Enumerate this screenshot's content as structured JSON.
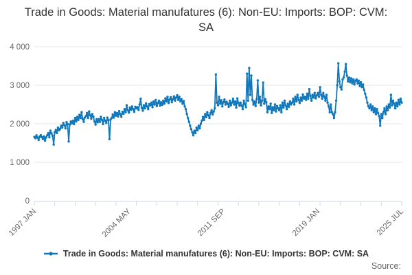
{
  "title": "Trade in Goods: Material manufatures (6): Non-EU: Imports: BOP: CVM: SA",
  "source_label": "Source:",
  "legend": {
    "series_label": "Trade in Goods: Material manufatures (6): Non-EU: Imports: BOP: CVM: SA"
  },
  "colors": {
    "series": "#1177bb",
    "grid": "#e6e6e6",
    "axis": "#ccd6eb",
    "tick_label": "#666666",
    "title": "#333333"
  },
  "chart_data": {
    "type": "line",
    "title": "Trade in Goods: Material manufatures (6): Non-EU: Imports: BOP: CVM: SA",
    "xlabel": "",
    "ylabel": "",
    "ylim": [
      0,
      4000
    ],
    "yticks": [
      0,
      1000,
      2000,
      3000,
      4000
    ],
    "ytick_labels": [
      "0",
      "1 000",
      "2 000",
      "3 000",
      "4 000"
    ],
    "xticks": [
      {
        "label": "1997 JAN",
        "month_index": 0
      },
      {
        "label": "2004 MAY",
        "month_index": 88
      },
      {
        "label": "2011 SEP",
        "month_index": 176
      },
      {
        "label": "2019 JAN",
        "month_index": 264
      },
      {
        "label": "2025 JUL",
        "month_index": 342
      }
    ],
    "x_start": "1997 JAN",
    "x_end": "2025 JUL",
    "frequency": "monthly",
    "grid": true,
    "legend_position": "bottom",
    "series": [
      {
        "name": "Trade in Goods: Material manufatures (6): Non-EU: Imports: BOP: CVM: SA",
        "color": "#1177bb",
        "values": [
          1660,
          1625,
          1700,
          1640,
          1580,
          1665,
          1705,
          1650,
          1600,
          1670,
          1560,
          1645,
          1700,
          1760,
          1650,
          1820,
          1750,
          1690,
          1460,
          1780,
          1840,
          1760,
          1900,
          1830,
          1870,
          1950,
          1900,
          2020,
          1960,
          1880,
          2040,
          1990,
          1540,
          1980,
          2060,
          2010,
          2080,
          1990,
          2150,
          2060,
          2180,
          2100,
          2230,
          2150,
          2300,
          2120,
          2050,
          2160,
          2200,
          2280,
          2150,
          2320,
          2220,
          2130,
          2250,
          2180,
          2060,
          1980,
          2120,
          2040,
          2120,
          2050,
          2180,
          2100,
          1990,
          2150,
          2080,
          2020,
          2160,
          2090,
          1600,
          2110,
          2150,
          2240,
          2160,
          2300,
          2210,
          2280,
          2190,
          2330,
          2250,
          2180,
          2310,
          2260,
          2380,
          2300,
          2480,
          2350,
          2290,
          2420,
          2360,
          2450,
          2380,
          2310,
          2440,
          2400,
          2430,
          2360,
          2500,
          2650,
          2420,
          2340,
          2480,
          2400,
          2530,
          2450,
          2380,
          2510,
          2480,
          2550,
          2430,
          2580,
          2500,
          2620,
          2460,
          2540,
          2600,
          2470,
          2560,
          2490,
          2600,
          2520,
          2660,
          2580,
          2700,
          2540,
          2630,
          2690,
          2560,
          2640,
          2710,
          2600,
          2680,
          2740,
          2620,
          2700,
          2580,
          2640,
          2520,
          2590,
          2450,
          2380,
          2250,
          2150,
          2050,
          1950,
          1860,
          1780,
          1700,
          1820,
          1760,
          1900,
          1830,
          1950,
          1880,
          2000,
          2080,
          2180,
          2100,
          2250,
          2170,
          2300,
          2220,
          2150,
          2280,
          2350,
          2240,
          2320,
          2400,
          3280,
          2550,
          2480,
          2700,
          2520,
          2610,
          2450,
          2560,
          2630,
          2500,
          2570,
          2520,
          2440,
          2600,
          2480,
          2550,
          2650,
          2500,
          2580,
          2420,
          2660,
          2540,
          2470,
          2550,
          2470,
          2380,
          2600,
          2510,
          2430,
          3300,
          2600,
          3450,
          2750,
          3250,
          2620,
          2500,
          2580,
          2460,
          2640,
          3125,
          2550,
          2700,
          2480,
          2600,
          3070,
          2520,
          2640,
          2560,
          2300,
          2450,
          2380,
          2520,
          2280,
          2430,
          2350,
          2500,
          2320,
          2460,
          2400,
          2350,
          2480,
          2300,
          2550,
          2420,
          2600,
          2470,
          2380,
          2520,
          2440,
          2580,
          2500,
          2550,
          2650,
          2500,
          2700,
          2580,
          2750,
          2620,
          2540,
          2680,
          2600,
          2760,
          2650,
          2700,
          2620,
          2780,
          2650,
          2900,
          2720,
          2600,
          2750,
          2680,
          2800,
          2660,
          2740,
          2800,
          2700,
          2950,
          2750,
          2650,
          2800,
          2700,
          2600,
          2750,
          2550,
          2450,
          2300,
          2500,
          2300,
          2250,
          2150,
          2300,
          2600,
          3000,
          3570,
          3100,
          2950,
          2890,
          3150,
          3200,
          3350,
          3550,
          3250,
          3100,
          3200,
          3080,
          3180,
          3050,
          3150,
          3020,
          3120,
          3150,
          3050,
          3120,
          2980,
          3080,
          2950,
          3020,
          2880,
          2780,
          2680,
          2550,
          2450,
          2400,
          2500,
          2350,
          2450,
          2300,
          2400,
          2250,
          2380,
          2280,
          2200,
          1950,
          2250,
          2150,
          2300,
          2400,
          2250,
          2450,
          2350,
          2500,
          2420,
          2750,
          2480,
          2600,
          2520,
          2400,
          2550,
          2450,
          2620,
          2500,
          2650,
          2550
        ]
      }
    ]
  }
}
